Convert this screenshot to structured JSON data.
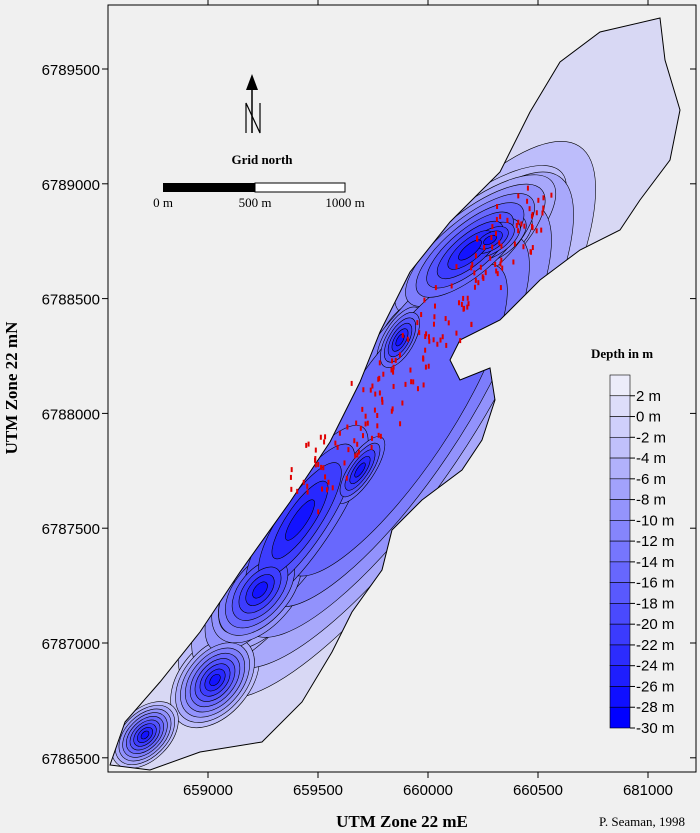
{
  "map": {
    "x_axis": {
      "title": "UTM Zone 22 mE",
      "ticks": [
        "659000",
        "659500",
        "660000",
        "660500",
        "681000"
      ]
    },
    "y_axis": {
      "title": "UTM Zone 22 mN",
      "ticks": [
        "6789500",
        "6789000",
        "6788500",
        "6788000",
        "6787500",
        "6787000",
        "6786500"
      ]
    },
    "north_label": "Grid north",
    "scale_bar": [
      "0 m",
      "500 m",
      "1000 m"
    ],
    "legend": {
      "title": "Depth in m",
      "levels": [
        "2 m",
        "0 m",
        "-2 m",
        "-4 m",
        "-6 m",
        "-8 m",
        "-10 m",
        "-12 m",
        "-14 m",
        "-16 m",
        "-18 m",
        "-20 m",
        "-22 m",
        "-24 m",
        "-26 m",
        "-28 m",
        "-30 m"
      ]
    },
    "credit": "P. Seaman, 1998"
  }
}
